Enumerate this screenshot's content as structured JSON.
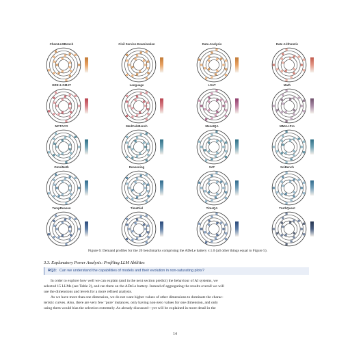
{
  "figure": {
    "panels": [
      {
        "title": "ChemLLMBench",
        "color": "#e8a262",
        "dark": "#c27a36"
      },
      {
        "title": "Civil Service Examination",
        "color": "#e8a262",
        "dark": "#c27a36"
      },
      {
        "title": "Data Analysis",
        "color": "#e8a262",
        "dark": "#c27a36"
      },
      {
        "title": "Date Arithmetic",
        "color": "#e39584",
        "dark": "#c25a4c"
      },
      {
        "title": "GRE & GMAT",
        "color": "#d97f86",
        "dark": "#b8434f"
      },
      {
        "title": "Language",
        "color": "#d97f86",
        "dark": "#b8434f"
      },
      {
        "title": "LSAT",
        "color": "#bf7b9e",
        "dark": "#8f3d6b"
      },
      {
        "title": "Math",
        "color": "#a98aa6",
        "dark": "#6e4f6b"
      },
      {
        "title": "MCTACO",
        "color": "#6fa3b5",
        "dark": "#2f6f86"
      },
      {
        "title": "MedCalcBench",
        "color": "#6fa3b5",
        "dark": "#2f6f86"
      },
      {
        "title": "MenatQA",
        "color": "#6fa3b5",
        "dark": "#2f6f86"
      },
      {
        "title": "MMLU-Pro",
        "color": "#6fa3b5",
        "dark": "#2f6f86"
      },
      {
        "title": "OmniMath",
        "color": "#74a0ba",
        "dark": "#2f6a8c"
      },
      {
        "title": "Reasoning",
        "color": "#74a0ba",
        "dark": "#2f6a8c"
      },
      {
        "title": "SAT",
        "color": "#74a0ba",
        "dark": "#2f6a8c"
      },
      {
        "title": "SciBench",
        "color": "#74a0ba",
        "dark": "#2f6a8c"
      },
      {
        "title": "TempReason",
        "color": "#5f7fa8",
        "dark": "#2b4a7a"
      },
      {
        "title": "TimeDial",
        "color": "#5f7fa8",
        "dark": "#2b4a7a"
      },
      {
        "title": "TimeQA",
        "color": "#5f7fa8",
        "dark": "#2b4a7a"
      },
      {
        "title": "TruthQuest",
        "color": "#4a5f82",
        "dark": "#26344f"
      }
    ]
  },
  "caption": "Figure 6: Demand profiles for the 20 benchmarks comprising the ADeLe battery v.1.0 (all other things equal to Figure 5).",
  "section_heading": "3.3.  Explanatory Power Analysis: Profiling LLM Abilities",
  "rq": {
    "label": "RQ3:",
    "text": "Can we understand the capabilities of models and their evolution in non-saturating plots?"
  },
  "body_lines": [
    "In order to explore how well we can explain (and in the next section predict) the behaviour of AI systems, we",
    "selected 15 LLMs (see Table 2), and ran them on the ADeLe battery. Instead of aggregating the results overall we will",
    "use the dimensions and levels for a more refined analysis.",
    "As we have more than one dimension, we do not want higher values of other dimensions to dominate the charac-",
    "teristic curves. Also, there are very few ‘pure’ instances, only having non-zero values for one dimension, and only",
    "using them would bias the selection extremely. As already discussed—yet will be explained in more detail in the"
  ],
  "page_number": "14"
}
